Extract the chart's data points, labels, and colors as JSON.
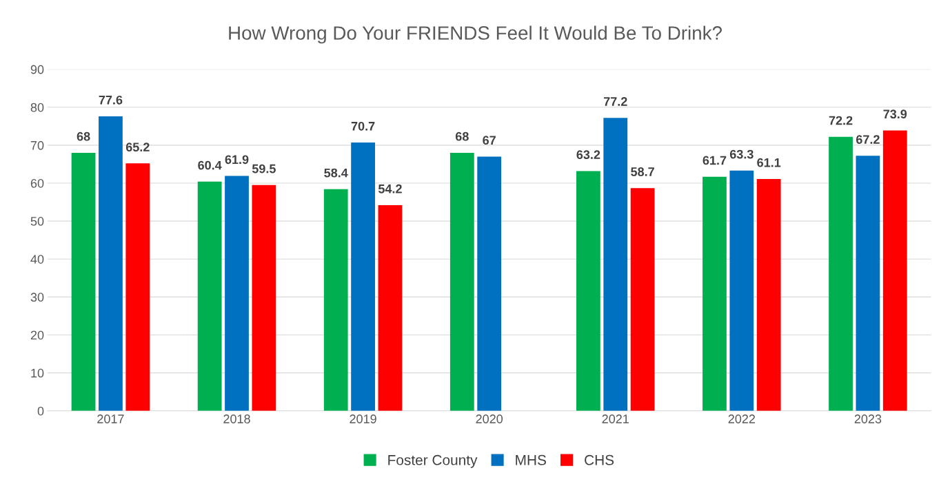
{
  "chart_data": {
    "type": "bar",
    "title": "How Wrong Do Your FRIENDS Feel It Would Be To Drink?",
    "categories": [
      "2017",
      "2018",
      "2019",
      "2020",
      "2021",
      "2022",
      "2023"
    ],
    "series": [
      {
        "name": "Foster County",
        "color": "#00b050",
        "values": [
          68,
          60.4,
          58.4,
          68,
          63.2,
          61.7,
          72.2
        ]
      },
      {
        "name": "MHS",
        "color": "#0070c0",
        "values": [
          77.6,
          61.9,
          70.7,
          67,
          77.2,
          63.3,
          67.2
        ]
      },
      {
        "name": "CHS",
        "color": "#ff0000",
        "values": [
          65.2,
          59.5,
          54.2,
          null,
          58.7,
          61.1,
          73.9
        ]
      }
    ],
    "ylim": [
      0,
      90
    ],
    "yticks": [
      0,
      10,
      20,
      30,
      40,
      50,
      60,
      70,
      80,
      90
    ],
    "grid": "y",
    "legend": "bottom",
    "data_labels": true
  }
}
